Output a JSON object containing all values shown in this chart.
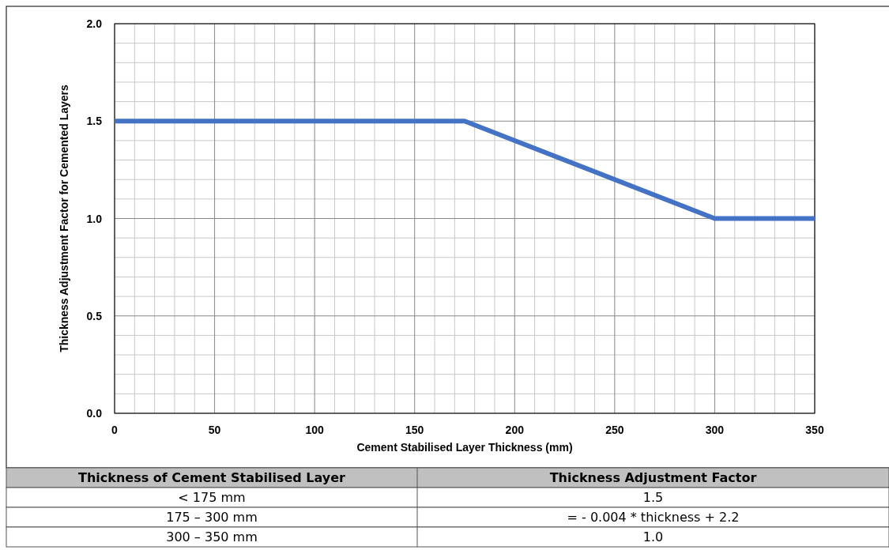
{
  "chart_data": {
    "type": "line",
    "xlabel": "Cement Stabilised Layer Thickness (mm)",
    "ylabel": "Thickness Adjustment Factor for Cemented Layers",
    "x": [
      0,
      175,
      300,
      350
    ],
    "series": [
      {
        "color": "#4472c4",
        "values": [
          1.5,
          1.5,
          1.0,
          1.0
        ]
      }
    ],
    "xlim": [
      0,
      350
    ],
    "xticks": [
      0,
      50,
      100,
      150,
      200,
      250,
      300,
      350
    ],
    "ylim": [
      0,
      2
    ],
    "yticks": [
      {
        "value": 0,
        "label": "0.0"
      },
      {
        "value": 0.5,
        "label": "0.5"
      },
      {
        "value": 1,
        "label": "1.0"
      },
      {
        "value": 1.5,
        "label": "1.5"
      },
      {
        "value": 2,
        "label": "2.0"
      }
    ],
    "grid": true,
    "marker": "none",
    "line_style": "solid",
    "annotations": [
      "Thickness of Cement Stabilised Layer",
      "Thickness Adjustment Factor",
      "< 175 mm",
      "1.5",
      "175 – 300 mm",
      "= - 0.004 * thickness + 2.2",
      "300 – 350 mm",
      "1.0"
    ]
  }
}
